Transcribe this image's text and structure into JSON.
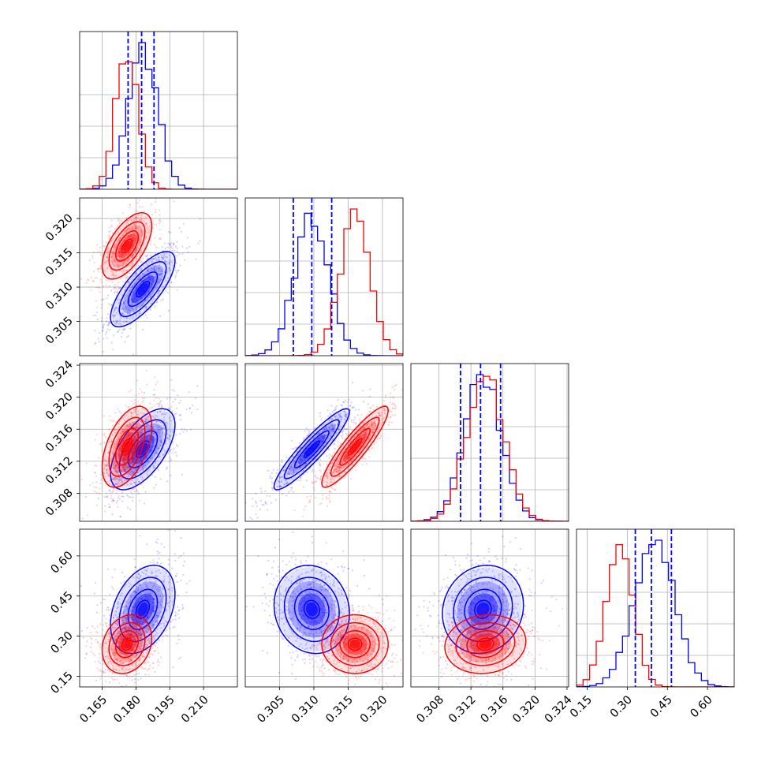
{
  "chart_data": {
    "type": "corner",
    "grid": true,
    "params": [
      {
        "lim": [
          0.155,
          0.225
        ],
        "ticks": [
          "0.165",
          "0.180",
          "0.195",
          "0.210"
        ]
      },
      {
        "lim": [
          0.3,
          0.323
        ],
        "ticks": [
          "0.305",
          "0.310",
          "0.315",
          "0.320"
        ]
      },
      {
        "lim": [
          0.3045,
          0.3242
        ],
        "ticks": [
          "0.308",
          "0.312",
          "0.316",
          "0.320",
          "0.324"
        ]
      },
      {
        "lim": [
          0.11,
          0.7
        ],
        "ticks": [
          "0.15",
          "0.30",
          "0.45",
          "0.60"
        ]
      }
    ],
    "series": [
      {
        "color": "#0000ff",
        "quantiles": [
          [
            0.1765,
            0.1825,
            0.188
          ],
          [
            0.307,
            0.3097,
            0.3126
          ],
          [
            0.3107,
            0.3132,
            0.3157
          ],
          [
            0.33,
            0.39,
            0.465
          ]
        ],
        "mean": [
          0.183,
          0.3097,
          0.3135,
          0.4
        ],
        "sd": [
          0.0065,
          0.0025,
          0.0023,
          0.075
        ],
        "corr": [
          [
            1,
            0.75,
            0.6,
            0.35
          ],
          [
            0.75,
            1,
            0.92,
            -0.1
          ],
          [
            0.6,
            0.92,
            1,
            0.1
          ],
          [
            0.35,
            -0.1,
            0.1,
            1
          ]
        ]
      },
      {
        "color": "#ff0000",
        "mean": [
          0.176,
          0.316,
          0.3138,
          0.27
        ],
        "sd": [
          0.005,
          0.0022,
          0.0023,
          0.05
        ],
        "corr": [
          [
            1,
            0.6,
            0.5,
            0.2
          ],
          [
            0.6,
            1,
            0.9,
            0
          ],
          [
            0.5,
            0.9,
            1,
            0.1
          ],
          [
            0.2,
            0,
            0.1,
            1
          ]
        ]
      }
    ]
  }
}
